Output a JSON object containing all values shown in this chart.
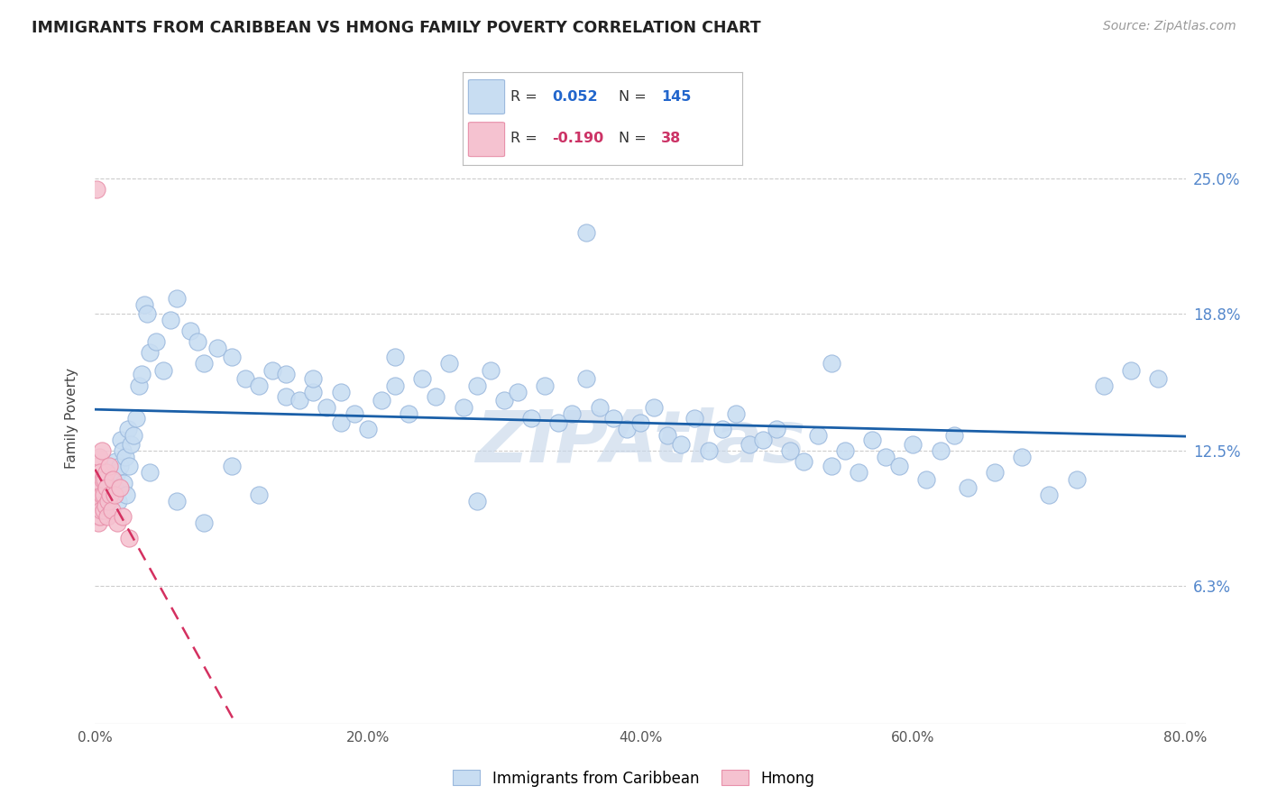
{
  "title": "IMMIGRANTS FROM CARIBBEAN VS HMONG FAMILY POVERTY CORRELATION CHART",
  "source": "Source: ZipAtlas.com",
  "ylabel": "Family Poverty",
  "x_tick_labels": [
    "0.0%",
    "20.0%",
    "40.0%",
    "60.0%",
    "80.0%"
  ],
  "x_tick_values": [
    0.0,
    20.0,
    40.0,
    60.0,
    80.0
  ],
  "y_tick_labels": [
    "6.3%",
    "12.5%",
    "18.8%",
    "25.0%"
  ],
  "y_tick_values": [
    6.3,
    12.5,
    18.8,
    25.0
  ],
  "xlim": [
    0.0,
    80.0
  ],
  "ylim": [
    0.0,
    28.0
  ],
  "caribbean_R": "0.052",
  "caribbean_N": "145",
  "hmong_R": "-0.190",
  "hmong_N": "38",
  "caribbean_fill": "#c8ddf2",
  "caribbean_edge": "#9ab8dd",
  "hmong_fill": "#f5c2d0",
  "hmong_edge": "#e890aa",
  "trend_caribbean_color": "#1a5fa8",
  "trend_hmong_color": "#d43060",
  "watermark": "ZIPAtlas",
  "watermark_color": "#c8d8ea",
  "carib_legend_color": "#2266cc",
  "hmong_legend_color": "#cc3366",
  "caribbean_x": [
    0.8,
    1.0,
    1.2,
    1.4,
    1.5,
    1.6,
    1.7,
    1.8,
    1.9,
    2.0,
    2.1,
    2.2,
    2.3,
    2.4,
    2.5,
    2.6,
    2.8,
    3.0,
    3.2,
    3.4,
    3.6,
    3.8,
    4.0,
    4.5,
    5.0,
    5.5,
    6.0,
    7.0,
    7.5,
    8.0,
    9.0,
    10.0,
    11.0,
    12.0,
    13.0,
    14.0,
    15.0,
    16.0,
    17.0,
    18.0,
    19.0,
    20.0,
    21.0,
    22.0,
    23.0,
    24.0,
    25.0,
    26.0,
    27.0,
    28.0,
    29.0,
    30.0,
    31.0,
    32.0,
    33.0,
    34.0,
    35.0,
    36.0,
    37.0,
    38.0,
    39.0,
    40.0,
    41.0,
    42.0,
    43.0,
    44.0,
    45.0,
    46.0,
    47.0,
    48.0,
    49.0,
    50.0,
    51.0,
    52.0,
    53.0,
    54.0,
    55.0,
    56.0,
    57.0,
    58.0,
    59.0,
    60.0,
    61.0,
    62.0,
    63.0,
    64.0,
    66.0,
    68.0,
    70.0,
    72.0,
    74.0,
    76.0,
    78.0,
    54.0,
    36.0,
    28.0,
    22.0,
    18.0,
    16.0,
    14.0,
    12.0,
    10.0,
    8.0,
    6.0,
    4.0
  ],
  "caribbean_y": [
    11.0,
    10.5,
    11.2,
    10.8,
    12.0,
    11.5,
    10.2,
    11.8,
    13.0,
    12.5,
    11.0,
    12.2,
    10.5,
    13.5,
    11.8,
    12.8,
    13.2,
    14.0,
    15.5,
    16.0,
    19.2,
    18.8,
    17.0,
    17.5,
    16.2,
    18.5,
    19.5,
    18.0,
    17.5,
    16.5,
    17.2,
    16.8,
    15.8,
    15.5,
    16.2,
    15.0,
    14.8,
    15.2,
    14.5,
    13.8,
    14.2,
    13.5,
    14.8,
    15.5,
    14.2,
    15.8,
    15.0,
    16.5,
    14.5,
    15.5,
    16.2,
    14.8,
    15.2,
    14.0,
    15.5,
    13.8,
    14.2,
    15.8,
    14.5,
    14.0,
    13.5,
    13.8,
    14.5,
    13.2,
    12.8,
    14.0,
    12.5,
    13.5,
    14.2,
    12.8,
    13.0,
    13.5,
    12.5,
    12.0,
    13.2,
    11.8,
    12.5,
    11.5,
    13.0,
    12.2,
    11.8,
    12.8,
    11.2,
    12.5,
    13.2,
    10.8,
    11.5,
    12.2,
    10.5,
    11.2,
    15.5,
    16.2,
    15.8,
    16.5,
    22.5,
    10.2,
    16.8,
    15.2,
    15.8,
    16.0,
    10.5,
    11.8,
    9.2,
    10.2,
    11.5
  ],
  "hmong_x": [
    0.05,
    0.08,
    0.1,
    0.12,
    0.15,
    0.18,
    0.2,
    0.22,
    0.25,
    0.28,
    0.3,
    0.32,
    0.35,
    0.38,
    0.4,
    0.42,
    0.45,
    0.48,
    0.5,
    0.55,
    0.6,
    0.65,
    0.7,
    0.75,
    0.8,
    0.85,
    0.9,
    0.95,
    1.0,
    1.1,
    1.2,
    1.3,
    1.4,
    1.6,
    1.8,
    2.0,
    2.5,
    0.1
  ],
  "hmong_y": [
    10.5,
    9.8,
    11.2,
    10.0,
    9.5,
    11.8,
    10.8,
    9.2,
    10.5,
    11.0,
    12.2,
    10.8,
    9.5,
    11.5,
    10.2,
    9.8,
    11.0,
    10.5,
    12.5,
    11.2,
    10.5,
    9.8,
    11.2,
    10.0,
    11.5,
    10.8,
    9.5,
    10.2,
    11.8,
    10.5,
    9.8,
    11.2,
    10.5,
    9.2,
    10.8,
    9.5,
    8.5,
    24.5
  ]
}
